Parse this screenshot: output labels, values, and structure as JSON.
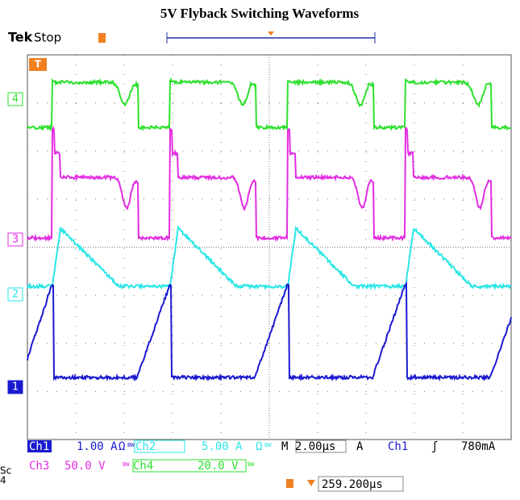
{
  "title": "5V Flyback Switching Waveforms",
  "header": {
    "brand": "Tek",
    "status": "Stop"
  },
  "trigger_marker": "T",
  "channel_markers": [
    "4",
    "3",
    "2",
    "1"
  ],
  "readouts": {
    "row1": [
      {
        "label": "Ch1",
        "scale": "1.00 A",
        "coupling": "Ω",
        "bw": "BW"
      },
      {
        "label": "Ch2",
        "scale": "5.00 A",
        "coupling": "Ω",
        "bw": "BW"
      }
    ],
    "row2": [
      {
        "label": "Ch3",
        "scale": "50.0 V",
        "bw": "BW"
      },
      {
        "label": "Ch4",
        "scale": "20.0 V",
        "bw": "BW"
      }
    ],
    "timebase": "M 2.00µs",
    "acq": "A",
    "trigger_source": "Ch1",
    "trigger_slope": "ʃ",
    "trigger_level": "780mA",
    "position": "259.200µs"
  },
  "cut_off": [
    "Sc",
    "4"
  ]
}
